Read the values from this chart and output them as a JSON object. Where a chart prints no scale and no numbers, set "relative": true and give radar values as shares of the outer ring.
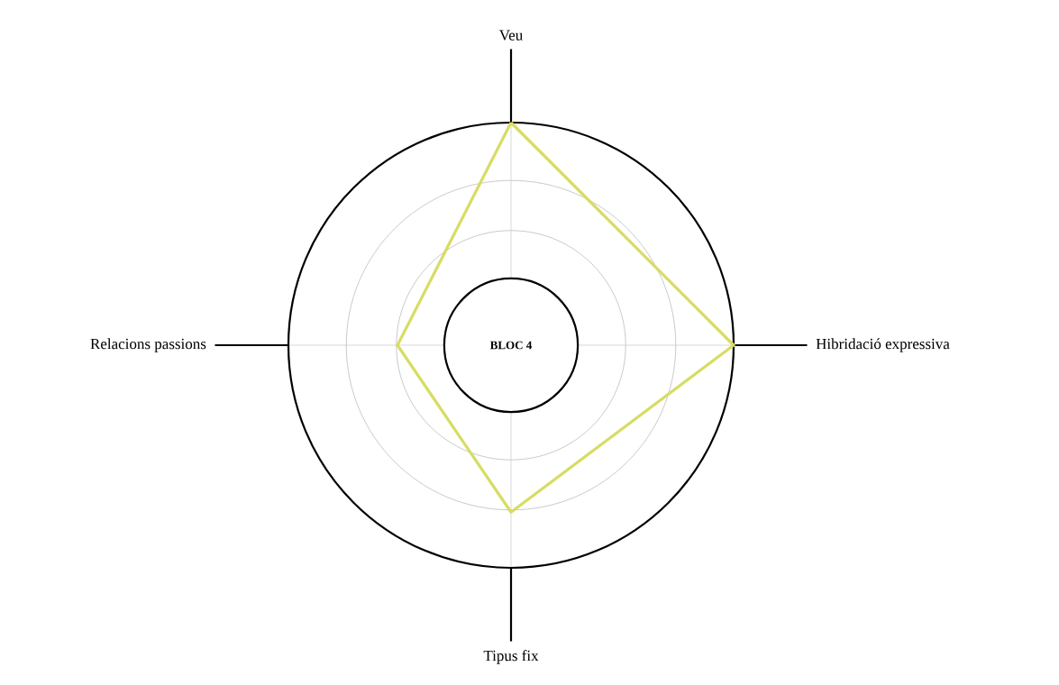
{
  "chart_data": {
    "type": "radar",
    "title": "BLOC 4",
    "relative": true,
    "grid": true,
    "categories": [
      "Veu",
      "Hibridació expressiva",
      "Tipus fix",
      "Relacions passions"
    ],
    "series": [
      {
        "color": "#d6dd62",
        "values": [
          1,
          1,
          0.75,
          0.51
        ]
      }
    ]
  }
}
